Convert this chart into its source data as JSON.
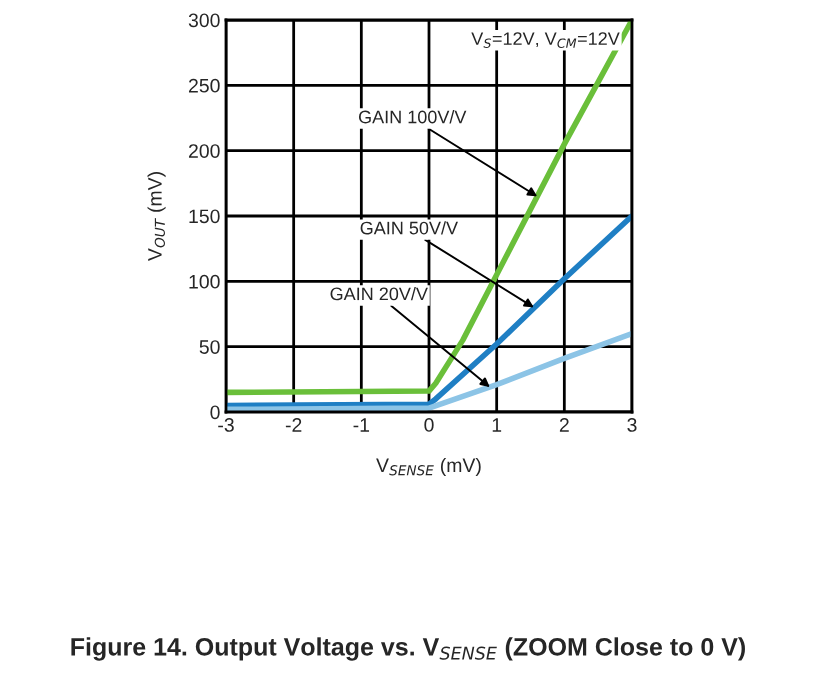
{
  "chart_data": {
    "type": "line",
    "title": "Figure 14. Output Voltage vs. V$_{SENSE}$ (ZOOM Close to 0 V)",
    "xlabel": "V$_{SENSE}$ (mV)",
    "ylabel": "V$_{OUT}$ (mV)",
    "xlim": [
      -3,
      3
    ],
    "ylim": [
      0,
      300
    ],
    "xticks": [
      -3,
      -2,
      -1,
      0,
      1,
      2,
      3
    ],
    "yticks": [
      0,
      50,
      100,
      150,
      200,
      250,
      300
    ],
    "grid": true,
    "line_style": "solid",
    "series": [
      {
        "color": "#6abf3a",
        "x": [
          -3,
          0,
          0.1,
          0.5,
          1,
          2,
          3
        ],
        "values": [
          15,
          16,
          22,
          55,
          105,
          205,
          300
        ]
      },
      {
        "color": "#1f7fc4",
        "x": [
          -3,
          0,
          0.1,
          1,
          2,
          3
        ],
        "values": [
          5,
          6,
          10,
          52,
          102,
          150
        ]
      },
      {
        "color": "#8cc4e6",
        "x": [
          -3,
          0,
          0.5,
          1,
          2,
          3
        ],
        "values": [
          2,
          3,
          12,
          21,
          41,
          60
        ]
      }
    ],
    "annotations": [
      "V$_{S}$=12V, V$_{CM}$=12V",
      {
        "text": "GAIN 100V/V",
        "x": 1.6,
        "y": 165
      },
      {
        "text": "GAIN 50V/V",
        "x": 1.55,
        "y": 80
      },
      {
        "text": "GAIN 20V/V",
        "x": 0.9,
        "y": 19
      }
    ]
  }
}
